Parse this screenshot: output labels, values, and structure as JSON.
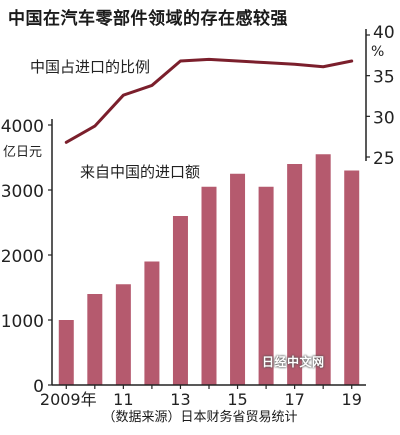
{
  "title": "中国在汽车零部件领域的存在感较强",
  "source": "（数据来源）日本财务省贸易统计",
  "watermark": "日经中文网",
  "colors": {
    "bar": "#b55a6e",
    "line": "#7b1f2c",
    "axis": "#222222",
    "grid": "#9a9a9a"
  },
  "chart_data": {
    "type": "bar+line",
    "categories": [
      "2009年",
      "2010",
      "2011",
      "2012",
      "2013",
      "2014",
      "2015",
      "2016",
      "2017",
      "2018",
      "2019"
    ],
    "x_tick_labels": [
      "2009年",
      "",
      "11",
      "",
      "13",
      "",
      "15",
      "",
      "17",
      "",
      "19"
    ],
    "bar_series": {
      "name": "来自中国的进口额",
      "axis": "left",
      "unit_label": "亿日元",
      "values": [
        1000,
        1400,
        1550,
        1900,
        2600,
        3050,
        3250,
        3050,
        3400,
        3550,
        3300
      ]
    },
    "line_series": {
      "name": "中国占进口的比例",
      "axis": "right",
      "unit_label": "%",
      "values": [
        26.8,
        28.8,
        32.6,
        33.8,
        36.8,
        37.0,
        36.8,
        36.6,
        36.4,
        36.1,
        36.8
      ]
    },
    "left_axis": {
      "ylim": [
        0,
        4000
      ],
      "ticks": [
        0,
        1000,
        2000,
        3000,
        4000
      ],
      "tick_labels": [
        "0",
        "1000",
        "2000",
        "3000",
        "4000"
      ]
    },
    "right_axis": {
      "ylim": [
        25,
        40
      ],
      "ticks": [
        25,
        30,
        35,
        40
      ],
      "tick_labels": [
        "25",
        "30",
        "35",
        "40"
      ]
    }
  }
}
